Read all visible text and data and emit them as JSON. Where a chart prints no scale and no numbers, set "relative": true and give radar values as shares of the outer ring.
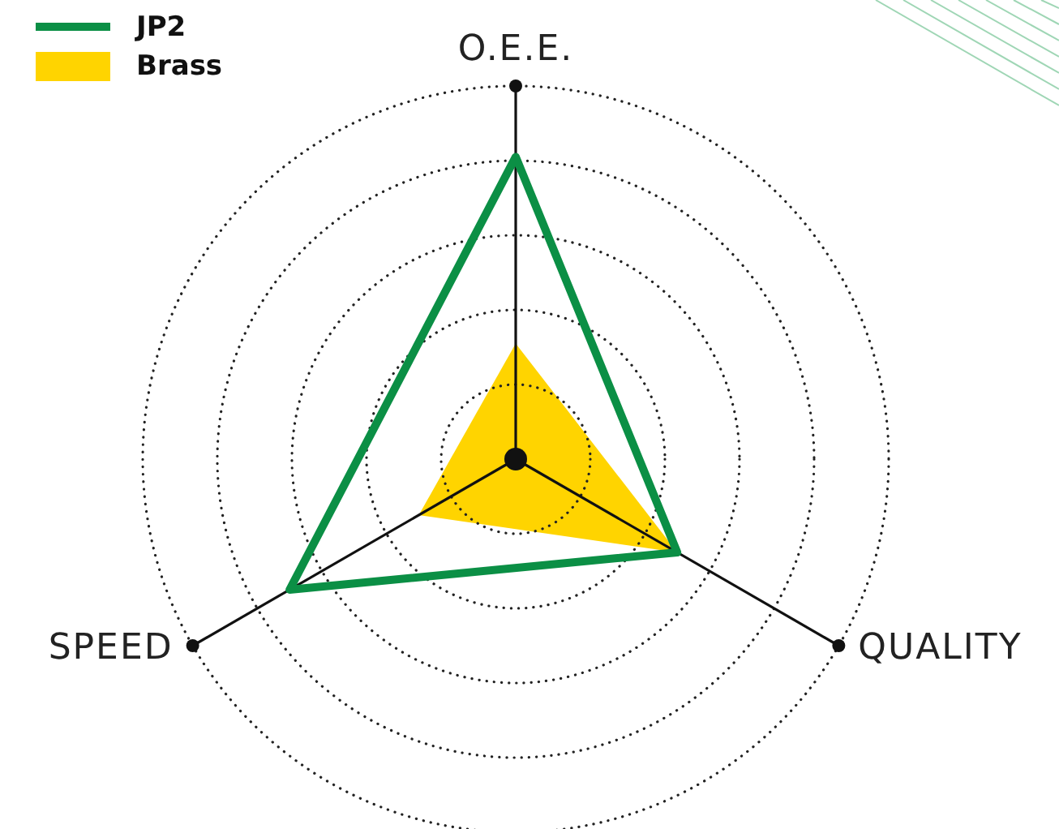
{
  "chart_data": {
    "type": "radar",
    "relative": true,
    "categories": [
      "O.E.E.",
      "QUALITY",
      "SPEED"
    ],
    "grid": true,
    "legend": "top left",
    "series": [
      {
        "name": "Brass",
        "type": "area",
        "color": "#ffd400",
        "values": [
          0.31,
          0.5,
          0.3
        ]
      },
      {
        "name": "JP2",
        "color": "#0b8f45",
        "values": [
          0.81,
          0.5,
          0.7
        ]
      }
    ]
  }
}
